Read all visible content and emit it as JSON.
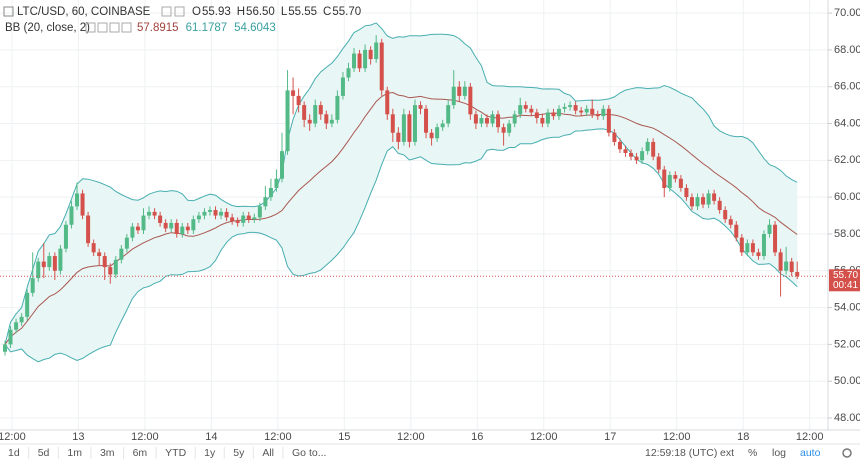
{
  "chart_data": {
    "type": "candlestick",
    "symbol": "LTC/USD, 60, COINBASE",
    "ohlc_header": [
      {
        "key": "O",
        "value": "55.93"
      },
      {
        "key": "H",
        "value": "56.50"
      },
      {
        "key": "L",
        "value": "55.55"
      },
      {
        "key": "C",
        "value": "55.70"
      }
    ],
    "indicator": {
      "name": "BB (20, close, 2)",
      "values": [
        {
          "value": "57.8915",
          "color": "#a0423c"
        },
        {
          "value": "61.1787",
          "color": "#3aa0a0"
        },
        {
          "value": "54.6043",
          "color": "#3aa0a0"
        }
      ]
    },
    "up_color": "#53b987",
    "down_color": "#d4504a",
    "band_color": "#47aeb0",
    "band_fill": "#e9f6f6",
    "basis_color": "#a9574f",
    "open": [
      51.6,
      52.0,
      52.8,
      53.2,
      53.5,
      54.8,
      55.6,
      56.5,
      56.2,
      56.8,
      56.0,
      57.2,
      58.5,
      59.5,
      60.2,
      59.0,
      57.5,
      57.0,
      56.8,
      56.2,
      55.8,
      56.6,
      57.2,
      57.8,
      58.4,
      58.2,
      59.0,
      59.2,
      59.0,
      58.6,
      58.3,
      58.6,
      58.0,
      58.4,
      58.2,
      58.8,
      59.0,
      59.2,
      59.3,
      59.0,
      59.2,
      58.9,
      58.7,
      58.6,
      59.0,
      58.8,
      58.9,
      59.5,
      60.0,
      60.5,
      61.0,
      62.5,
      65.8,
      65.5,
      65.0,
      64.2,
      64.0,
      65.0,
      64.5,
      64.0,
      64.2,
      65.5,
      66.5,
      67.0,
      67.8,
      67.0,
      68.0,
      67.5,
      68.4,
      65.8,
      64.5,
      63.5,
      63.0,
      64.5,
      63.0,
      65.0,
      64.8,
      63.5,
      63.2,
      63.8,
      64.0,
      65.0,
      66.0,
      65.5,
      66.0,
      64.5,
      64.0,
      64.3,
      64.0,
      64.5,
      63.8,
      63.5,
      64.0,
      64.5,
      65.0,
      64.8,
      64.6,
      64.3,
      64.0,
      64.6,
      64.4,
      64.8,
      64.9,
      65.0,
      64.7,
      64.6,
      64.8,
      64.5,
      64.4,
      64.8,
      63.5,
      63.0,
      62.6,
      62.4,
      62.2,
      62.0,
      62.5,
      63.0,
      62.2,
      61.5,
      60.5,
      61.2,
      61.0,
      60.5,
      60.0,
      59.5,
      60.0,
      59.6,
      60.2,
      59.8,
      59.3,
      58.8,
      58.5,
      57.8,
      57.0,
      57.5,
      57.0,
      56.8,
      58.0,
      58.5,
      57.0,
      56.0,
      56.5,
      55.93
    ],
    "high": [
      52.2,
      53.0,
      53.4,
      53.7,
      55.0,
      57.0,
      56.7,
      57.5,
      57.0,
      57.0,
      57.4,
      58.7,
      59.8,
      60.8,
      60.4,
      59.2,
      57.7,
      57.2,
      57.0,
      56.4,
      56.8,
      57.4,
      58.0,
      58.6,
      58.6,
      59.4,
      59.5,
      59.4,
      59.2,
      58.8,
      58.8,
      58.8,
      58.6,
      58.6,
      59.0,
      59.2,
      59.4,
      59.5,
      59.5,
      59.4,
      59.4,
      59.1,
      58.9,
      59.2,
      59.2,
      59.1,
      59.7,
      60.6,
      61.0,
      61.5,
      63.5,
      66.9,
      66.5,
      65.9,
      65.2,
      64.5,
      65.3,
      65.2,
      64.7,
      64.5,
      65.8,
      66.8,
      67.3,
      68.1,
      68.0,
      68.3,
      68.2,
      68.8,
      68.6,
      66.0,
      64.8,
      63.8,
      64.8,
      64.7,
      65.3,
      65.2,
      65.0,
      63.7,
      64.0,
      64.2,
      65.3,
      66.9,
      66.3,
      66.3,
      66.2,
      64.7,
      64.5,
      64.5,
      64.7,
      64.7,
      64.0,
      64.2,
      64.7,
      65.4,
      65.2,
      65.0,
      64.8,
      64.5,
      64.8,
      64.8,
      65.0,
      65.1,
      65.2,
      65.2,
      64.9,
      65.0,
      65.3,
      64.7,
      65.0,
      65.0,
      63.7,
      63.2,
      62.8,
      62.6,
      62.4,
      62.7,
      63.2,
      63.2,
      62.4,
      61.7,
      61.4,
      61.4,
      61.2,
      60.7,
      60.2,
      60.2,
      60.2,
      60.4,
      60.4,
      60.0,
      59.5,
      59.0,
      58.7,
      58.0,
      57.7,
      57.7,
      57.2,
      58.2,
      58.8,
      58.7,
      57.2,
      57.3,
      56.7,
      56.5
    ],
    "low": [
      51.4,
      51.8,
      52.6,
      53.0,
      53.3,
      54.6,
      55.4,
      55.6,
      56.0,
      55.5,
      55.8,
      57.0,
      58.3,
      59.3,
      58.8,
      57.3,
      56.8,
      56.3,
      55.5,
      55.3,
      55.6,
      56.4,
      57.0,
      57.6,
      58.0,
      58.0,
      58.8,
      58.8,
      58.4,
      58.1,
      58.1,
      57.8,
      57.8,
      58.0,
      58.0,
      58.6,
      58.8,
      59.0,
      58.8,
      58.8,
      58.7,
      58.5,
      58.4,
      58.4,
      58.6,
      58.6,
      58.7,
      59.3,
      59.8,
      60.3,
      60.8,
      62.3,
      64.5,
      64.6,
      63.8,
      63.6,
      63.8,
      64.2,
      63.7,
      63.8,
      64.0,
      65.3,
      66.3,
      66.8,
      66.8,
      66.8,
      67.2,
      67.3,
      65.5,
      64.2,
      63.0,
      62.6,
      62.8,
      62.7,
      62.8,
      64.5,
      63.2,
      62.8,
      63.0,
      63.6,
      63.8,
      64.8,
      65.2,
      65.3,
      64.2,
      63.7,
      63.8,
      63.8,
      63.8,
      63.5,
      62.8,
      63.3,
      63.8,
      64.3,
      64.6,
      64.4,
      64.0,
      63.8,
      63.8,
      64.2,
      64.2,
      64.6,
      64.7,
      64.5,
      64.4,
      64.4,
      64.3,
      64.2,
      64.2,
      63.3,
      62.8,
      62.4,
      62.2,
      62.0,
      61.8,
      61.8,
      62.3,
      62.0,
      61.3,
      60.0,
      60.3,
      60.8,
      60.3,
      59.8,
      59.3,
      59.3,
      59.4,
      59.4,
      59.6,
      59.1,
      58.6,
      58.3,
      57.6,
      56.8,
      56.8,
      56.8,
      56.6,
      56.6,
      57.8,
      56.8,
      54.6,
      55.8,
      55.7,
      55.55
    ],
    "close": [
      52.0,
      52.8,
      53.2,
      53.5,
      54.8,
      55.6,
      56.5,
      56.2,
      56.8,
      56.0,
      57.2,
      58.5,
      59.5,
      60.2,
      59.0,
      57.5,
      57.0,
      56.8,
      56.2,
      55.8,
      56.6,
      57.2,
      57.8,
      58.4,
      58.2,
      59.0,
      59.2,
      59.0,
      58.6,
      58.3,
      58.6,
      58.0,
      58.4,
      58.2,
      58.8,
      59.0,
      59.2,
      59.3,
      59.0,
      59.2,
      58.9,
      58.7,
      58.6,
      59.0,
      58.8,
      58.9,
      59.5,
      60.0,
      60.5,
      61.0,
      62.5,
      65.8,
      65.5,
      65.0,
      64.2,
      64.0,
      65.0,
      64.5,
      64.0,
      64.2,
      65.5,
      66.5,
      67.0,
      67.8,
      67.0,
      68.0,
      67.5,
      68.4,
      65.8,
      64.5,
      63.5,
      63.0,
      64.5,
      63.0,
      65.0,
      64.8,
      63.5,
      63.2,
      63.8,
      64.0,
      65.0,
      66.0,
      65.5,
      66.0,
      64.5,
      64.0,
      64.3,
      64.0,
      64.5,
      63.8,
      63.5,
      64.0,
      64.5,
      65.0,
      64.8,
      64.6,
      64.3,
      64.0,
      64.6,
      64.4,
      64.8,
      64.9,
      65.0,
      64.7,
      64.6,
      64.8,
      64.5,
      64.4,
      64.8,
      63.5,
      63.0,
      62.6,
      62.4,
      62.2,
      62.0,
      62.5,
      63.0,
      62.2,
      61.5,
      60.5,
      61.2,
      61.0,
      60.5,
      60.0,
      59.5,
      60.0,
      59.6,
      60.2,
      59.8,
      59.3,
      58.8,
      58.5,
      57.8,
      57.0,
      57.5,
      57.0,
      56.8,
      58.0,
      58.5,
      57.0,
      56.0,
      56.5,
      55.93,
      55.7
    ],
    "last_price_label": "55.70",
    "countdown": "00:41",
    "ylim": [
      47.35,
      70.71
    ],
    "yticks": [
      {
        "value": 48,
        "label": "48.00"
      },
      {
        "value": 50,
        "label": "50.00"
      },
      {
        "value": 52,
        "label": "52.00"
      },
      {
        "value": 54,
        "label": "54.00"
      },
      {
        "value": 56,
        "label": "56.00"
      },
      {
        "value": 58,
        "label": "58.00"
      },
      {
        "value": 60,
        "label": "60.00"
      },
      {
        "value": 62,
        "label": "62.00"
      },
      {
        "value": 64,
        "label": "64.00"
      },
      {
        "value": 66,
        "label": "66.00"
      },
      {
        "value": 68,
        "label": "68.00"
      },
      {
        "value": 70,
        "label": "70.00"
      }
    ],
    "xticks": [
      "12:00",
      "13",
      "12:00",
      "14",
      "12:00",
      "15",
      "12:00",
      "16",
      "12:00",
      "17",
      "12:00",
      "18",
      "12:00"
    ],
    "grid": true
  },
  "toolbar": {
    "ranges": [
      "1d",
      "5d",
      "1m",
      "3m",
      "6m",
      "YTD",
      "1y",
      "5y",
      "All",
      "Go to..."
    ],
    "clock": "12:59:18 (UTC)",
    "options": [
      "ext",
      "%",
      "log",
      "auto"
    ]
  }
}
